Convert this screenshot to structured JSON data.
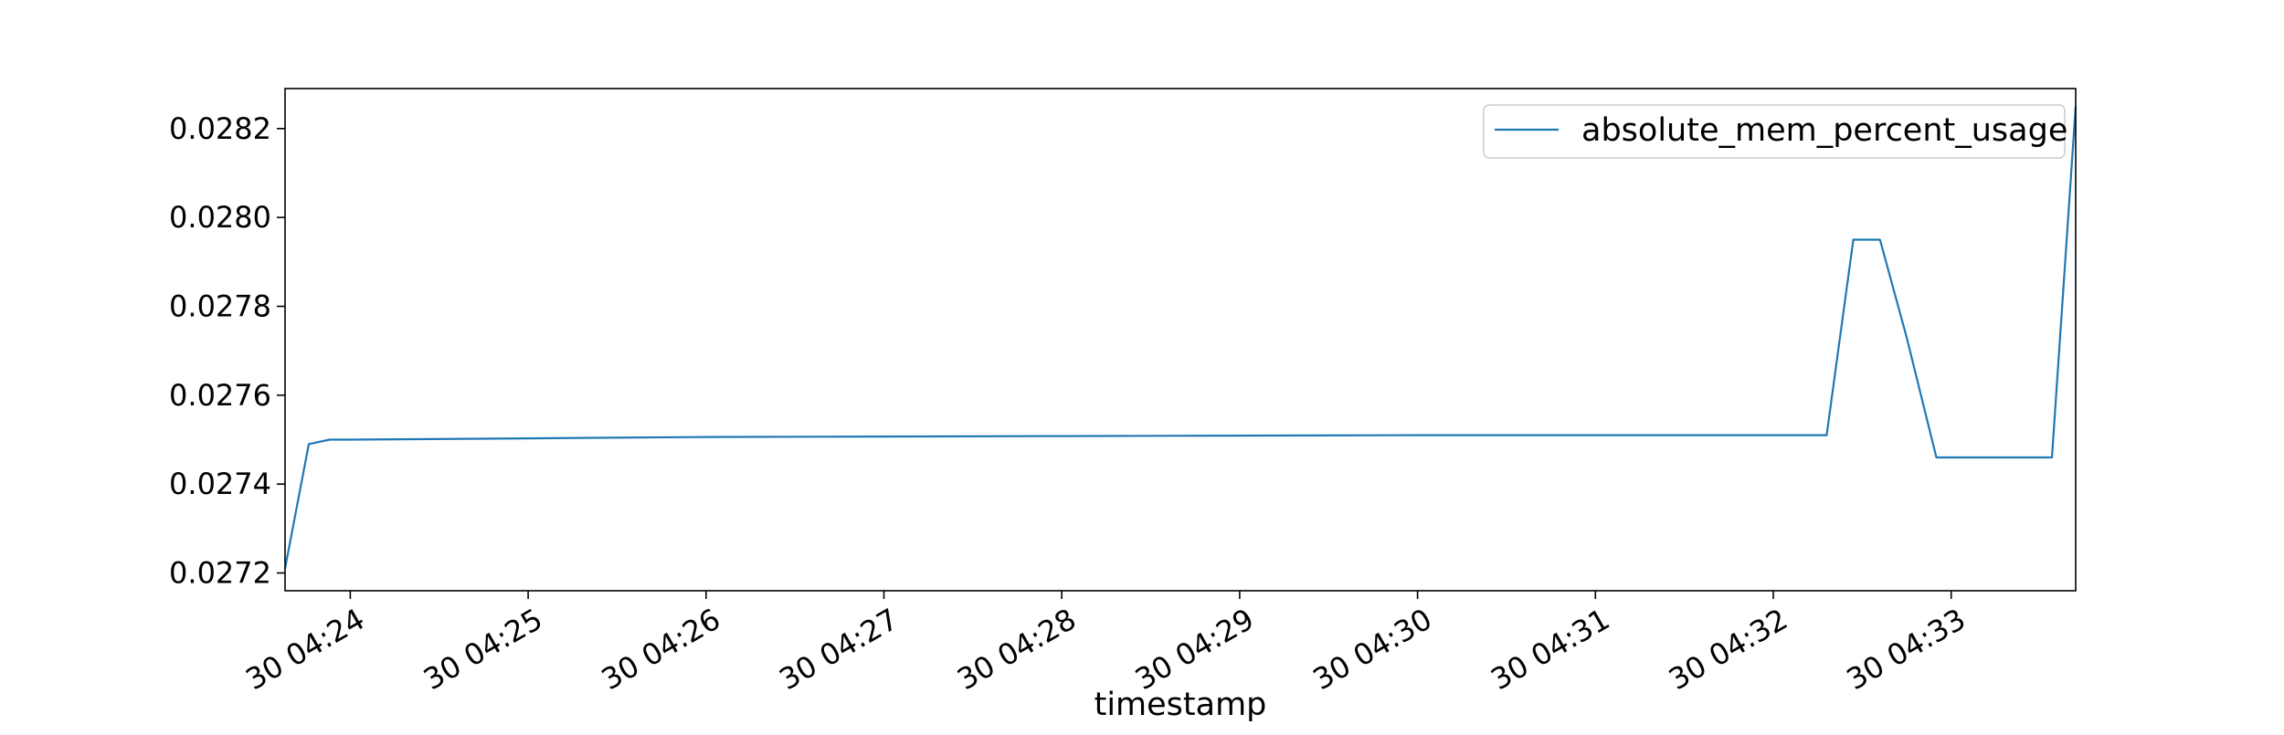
{
  "chart_data": {
    "type": "line",
    "title": "",
    "xlabel": "timestamp",
    "ylabel": "",
    "x_ticks": [
      "30 04:24",
      "30 04:25",
      "30 04:26",
      "30 04:27",
      "30 04:28",
      "30 04:29",
      "30 04:30",
      "30 04:31",
      "30 04:32",
      "30 04:33"
    ],
    "x_tick_minutes": [
      24,
      25,
      26,
      27,
      28,
      29,
      30,
      31,
      32,
      33
    ],
    "y_ticks": [
      "0.0272",
      "0.0274",
      "0.0276",
      "0.0278",
      "0.0280",
      "0.0282"
    ],
    "y_tick_values": [
      0.0272,
      0.0274,
      0.0276,
      0.0278,
      0.028,
      0.0282
    ],
    "xlim": [
      "04:23:38",
      "04:33:42"
    ],
    "ylim": [
      0.02716,
      0.02829
    ],
    "grid": false,
    "legend_position": "top-right",
    "series": [
      {
        "name": "absolute_mem_percent_usage",
        "color": "#1f77b4",
        "x": [
          "04:23:38",
          "04:23:46",
          "04:23:53",
          "04:24:00",
          "04:25:00",
          "04:26:00",
          "04:27:00",
          "04:28:00",
          "04:29:00",
          "04:30:00",
          "04:31:00",
          "04:32:00",
          "04:32:18",
          "04:32:27",
          "04:32:36",
          "04:32:45",
          "04:32:55",
          "04:33:00",
          "04:33:34",
          "04:33:42"
        ],
        "y": [
          0.02721,
          0.02749,
          0.0275,
          0.0275,
          0.027503,
          0.027506,
          0.027507,
          0.027508,
          0.027509,
          0.02751,
          0.02751,
          0.02751,
          0.02751,
          0.02795,
          0.02795,
          0.02773,
          0.02746,
          0.02746,
          0.02746,
          0.02825
        ]
      }
    ]
  }
}
